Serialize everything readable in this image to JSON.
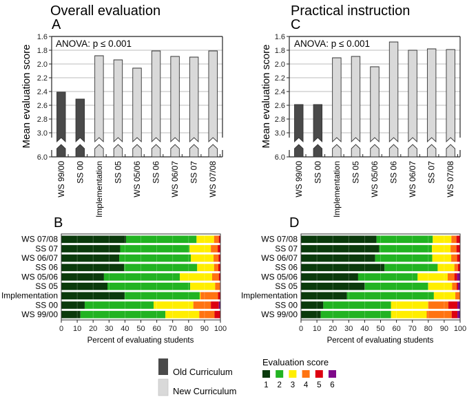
{
  "chart_data": [
    {
      "id": "A",
      "type": "bar",
      "title": "Overall evaluation",
      "panel_label": "A",
      "annotation": "ANOVA: p ≤ 0.001",
      "ylabel": "Mean evaluation score",
      "xlabel": "",
      "y_inverted": true,
      "y_break": {
        "from": 3.0,
        "to": 6.0
      },
      "ylim": [
        1.6,
        6.0
      ],
      "yticks": [
        "1.6",
        "1.8",
        "2.0",
        "2.2",
        "2.4",
        "2.6",
        "2.8",
        "3.0",
        "6.0"
      ],
      "grid": true,
      "categories": [
        "WS 99/00",
        "SS 00",
        "Implementation",
        "SS 05",
        "WS 05/06",
        "SS 06",
        "WS 06/07",
        "SS 07",
        "WS 07/08"
      ],
      "groups": [
        "old",
        "old",
        "new",
        "new",
        "new",
        "new",
        "new",
        "new",
        "new"
      ],
      "values": [
        2.41,
        2.51,
        1.88,
        1.94,
        2.06,
        1.81,
        1.89,
        1.9,
        1.81
      ]
    },
    {
      "id": "C",
      "type": "bar",
      "title": "Practical instruction",
      "panel_label": "C",
      "annotation": "ANOVA: p ≤ 0.001",
      "ylabel": "Mean evaluation score",
      "xlabel": "",
      "y_inverted": true,
      "y_break": {
        "from": 3.0,
        "to": 6.0
      },
      "ylim": [
        1.6,
        6.0
      ],
      "yticks": [
        "1.6",
        "1.8",
        "2.0",
        "2.2",
        "2.4",
        "2.6",
        "2.8",
        "3.0",
        "6.0"
      ],
      "grid": true,
      "categories": [
        "WS 99/00",
        "SS 00",
        "Implementation",
        "SS 05",
        "WS 05/06",
        "SS 06",
        "WS 06/07",
        "SS 07",
        "WS 07/08"
      ],
      "groups": [
        "old",
        "old",
        "new",
        "new",
        "new",
        "new",
        "new",
        "new",
        "new"
      ],
      "values": [
        2.59,
        2.59,
        1.91,
        1.89,
        2.04,
        1.68,
        1.8,
        1.78,
        1.79
      ]
    },
    {
      "id": "B",
      "type": "bar",
      "orientation": "horizontal-stacked",
      "panel_label": "B",
      "xlabel": "Percent of evaluating students",
      "xlim": [
        0,
        100
      ],
      "xticks": [
        "0",
        "10",
        "20",
        "30",
        "40",
        "50",
        "60",
        "70",
        "80",
        "90",
        "100"
      ],
      "categories": [
        "WS 07/08",
        "SS 07",
        "WS 06/07",
        "SS 06",
        "WS 05/06",
        "SS 05",
        "Implementation",
        "SS 00",
        "WS 99/00"
      ],
      "series": [
        {
          "name": "1",
          "values": [
            40.7,
            37.0,
            36.4,
            39.5,
            26.8,
            29.0,
            39.8,
            14.7,
            12.0
          ]
        },
        {
          "name": "2",
          "values": [
            44.3,
            43.6,
            45.0,
            45.9,
            47.7,
            52.0,
            47.2,
            43.3,
            53.4
          ]
        },
        {
          "name": "3",
          "values": [
            11.0,
            13.4,
            14.3,
            10.6,
            20.3,
            15.7,
            0.5,
            25.0,
            21.3
          ]
        },
        {
          "name": "4",
          "values": [
            3.0,
            4.3,
            3.1,
            2.7,
            4.2,
            3.0,
            11.0,
            11.0,
            9.6
          ]
        },
        {
          "name": "5",
          "values": [
            1.0,
            1.7,
            1.2,
            1.3,
            1.0,
            0.3,
            1.5,
            5.0,
            3.7
          ]
        },
        {
          "name": "6",
          "values": [
            0,
            0,
            0,
            0,
            0,
            0,
            0,
            1.0,
            0
          ]
        }
      ]
    },
    {
      "id": "D",
      "type": "bar",
      "orientation": "horizontal-stacked",
      "panel_label": "D",
      "xlabel": "Percent of evaluating students",
      "xlim": [
        0,
        100
      ],
      "xticks": [
        "0",
        "10",
        "20",
        "30",
        "40",
        "50",
        "60",
        "70",
        "80",
        "90",
        "100"
      ],
      "categories": [
        "WS 07/08",
        "SS 07",
        "WS 06/07",
        "SS 06",
        "WS 05/06",
        "SS 05",
        "Implementation",
        "SS 00",
        "WS 99/00"
      ],
      "series": [
        {
          "name": "1",
          "values": [
            47.5,
            49.1,
            46.6,
            52.5,
            35.9,
            40.1,
            28.9,
            14.0,
            12.4
          ]
        },
        {
          "name": "2",
          "values": [
            35.3,
            33.2,
            35.9,
            33.4,
            37.4,
            39.8,
            54.6,
            42.6,
            44.2
          ]
        },
        {
          "name": "3",
          "values": [
            11.7,
            11.7,
            11.9,
            10.5,
            18.9,
            15.1,
            13.5,
            23.3,
            22.4
          ]
        },
        {
          "name": "4",
          "values": [
            3.2,
            3.7,
            3.7,
            2.2,
            4.2,
            2.8,
            3.0,
            12.7,
            15.7
          ]
        },
        {
          "name": "5",
          "values": [
            2.3,
            2.3,
            1.9,
            1.4,
            1.7,
            0.9,
            0,
            5.7,
            3.6
          ]
        },
        {
          "name": "6",
          "values": [
            0,
            0,
            0,
            0,
            1.9,
            1.3,
            0,
            1.7,
            1.7
          ]
        }
      ]
    }
  ],
  "legend": {
    "curriculum": [
      {
        "label": "Old Curriculum",
        "color": "#4a4a4a"
      },
      {
        "label": "New Curriculum",
        "color": "#d9d9d9"
      }
    ],
    "score_title": "Evaluation score",
    "scores": [
      {
        "label": "1",
        "color": "#0b3a0c"
      },
      {
        "label": "2",
        "color": "#22b322"
      },
      {
        "label": "3",
        "color": "#ffee00"
      },
      {
        "label": "4",
        "color": "#ff7311"
      },
      {
        "label": "5",
        "color": "#dd0011"
      },
      {
        "label": "6",
        "color": "#7f0a8a"
      }
    ]
  },
  "colors": {
    "old_bar": "#4a4a4a",
    "new_bar": "#d9d9d9",
    "bar_stroke": "#333333",
    "grid": "#bbbbbb"
  }
}
